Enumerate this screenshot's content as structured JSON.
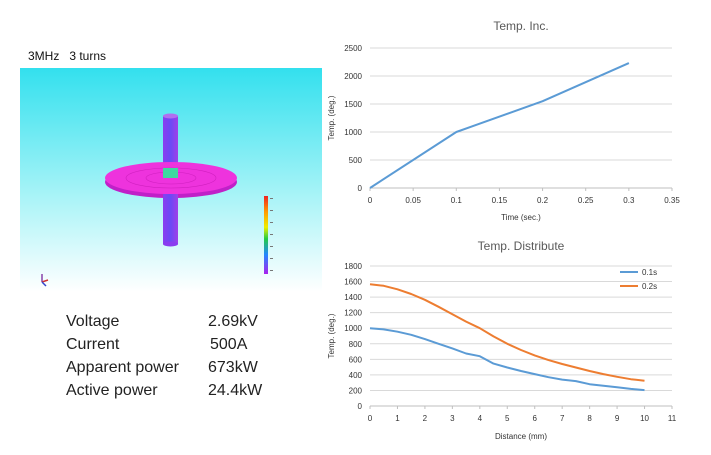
{
  "simulation": {
    "title": "3MHz   3 turns",
    "parameters": [
      {
        "label": "Voltage",
        "value": "2.69kV"
      },
      {
        "label": "Current",
        "value": "500A"
      },
      {
        "label": "Apparent power",
        "value": "673kW"
      },
      {
        "label": "Active power",
        "value": "24.4kW"
      }
    ],
    "colors": {
      "plate": "#ee33dd",
      "rod": "#7a44ee",
      "background": "#33e0ee"
    }
  },
  "chart_data": [
    {
      "type": "line",
      "title": "Temp. Inc.",
      "xlabel": "Time (sec.)",
      "ylabel": "Temp. (deg.)",
      "xlim": [
        0,
        0.35
      ],
      "ylim": [
        0,
        2500
      ],
      "xticks": [
        "0",
        "0.05",
        "0.1",
        "0.15",
        "0.2",
        "0.25",
        "0.3",
        "0.35"
      ],
      "yticks": [
        "0",
        "500",
        "1000",
        "1500",
        "2000",
        "2500"
      ],
      "grid": true,
      "series": [
        {
          "color": "#5b9bd5",
          "x": [
            0,
            0.1,
            0.2,
            0.3
          ],
          "y": [
            0,
            1000,
            1550,
            2230
          ]
        }
      ]
    },
    {
      "type": "line",
      "title": "Temp. Distribute",
      "xlabel": "Distance (mm)",
      "ylabel": "Temp. (deg.)",
      "xlim": [
        0,
        11
      ],
      "ylim": [
        0,
        1800
      ],
      "xticks": [
        "0",
        "1",
        "2",
        "3",
        "4",
        "5",
        "6",
        "7",
        "8",
        "9",
        "10",
        "11"
      ],
      "yticks": [
        "0",
        "200",
        "400",
        "600",
        "800",
        "1000",
        "1200",
        "1400",
        "1600",
        "1800"
      ],
      "grid": true,
      "legend": "top-right",
      "series": [
        {
          "name": "0.1s",
          "color": "#5b9bd5",
          "x": [
            0,
            0.5,
            1,
            1.5,
            2,
            2.5,
            3,
            3.5,
            4,
            4.5,
            5,
            5.5,
            6,
            6.5,
            7,
            7.5,
            8,
            8.5,
            9,
            9.5,
            10
          ],
          "y": [
            1000,
            985,
            955,
            915,
            860,
            800,
            740,
            675,
            640,
            545,
            495,
            450,
            410,
            370,
            340,
            320,
            280,
            260,
            240,
            220,
            205
          ]
        },
        {
          "name": "0.2s",
          "color": "#ed7d31",
          "x": [
            0,
            0.5,
            1,
            1.5,
            2,
            2.5,
            3,
            3.5,
            4,
            4.5,
            5,
            5.5,
            6,
            6.5,
            7,
            7.5,
            8,
            8.5,
            9,
            9.5,
            10
          ],
          "y": [
            1565,
            1545,
            1500,
            1440,
            1365,
            1275,
            1180,
            1085,
            1000,
            895,
            800,
            720,
            650,
            590,
            540,
            495,
            450,
            410,
            375,
            345,
            325
          ]
        }
      ]
    }
  ]
}
